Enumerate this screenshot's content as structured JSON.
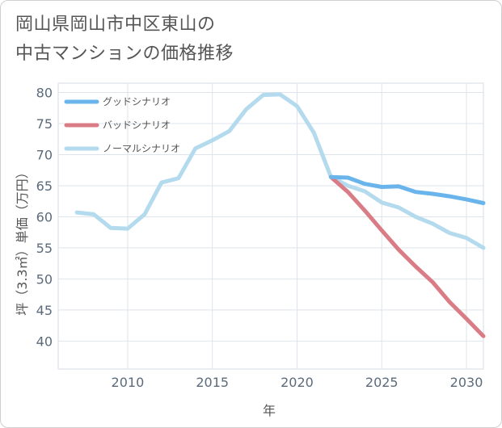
{
  "title": {
    "line1": "岡山県岡山市中区東山の",
    "line2": "中古マンションの価格推移"
  },
  "chart_data": {
    "type": "line",
    "xlabel": "年",
    "ylabel": "坪（3.3㎡）単価（万円）",
    "xlim": [
      2005.9,
      2031
    ],
    "ylim": [
      35.5,
      81.5
    ],
    "x_ticks": [
      2010,
      2015,
      2020,
      2025,
      2030
    ],
    "y_ticks": [
      40,
      45,
      50,
      55,
      60,
      65,
      70,
      75,
      80
    ],
    "grid": true,
    "legend_position": "top-left",
    "series": [
      {
        "name": "グッドシナリオ",
        "color": "#6ab4ec",
        "x": [
          2022,
          2023,
          2024,
          2025,
          2026,
          2027,
          2028,
          2029,
          2030,
          2031
        ],
        "values": [
          66.4,
          66.3,
          65.3,
          64.8,
          64.9,
          64.0,
          63.7,
          63.3,
          62.8,
          62.2
        ]
      },
      {
        "name": "バッドシナリオ",
        "color": "#da7c86",
        "x": [
          2022,
          2023,
          2024,
          2025,
          2026,
          2027,
          2028,
          2029,
          2030,
          2031
        ],
        "values": [
          66.4,
          64.0,
          61.0,
          57.8,
          54.7,
          52.0,
          49.5,
          46.3,
          43.6,
          40.8
        ]
      },
      {
        "name": "ノーマルシナリオ",
        "color": "#b4daee",
        "x": [
          2007,
          2008,
          2009,
          2010,
          2011,
          2012,
          2013,
          2014,
          2015,
          2016,
          2017,
          2018,
          2019,
          2020,
          2021,
          2022,
          2023,
          2024,
          2025,
          2026,
          2027,
          2028,
          2029,
          2030,
          2031
        ],
        "values": [
          60.7,
          60.4,
          58.2,
          58.1,
          60.4,
          65.5,
          66.2,
          71.0,
          72.3,
          73.8,
          77.3,
          79.6,
          79.7,
          77.8,
          73.5,
          66.4,
          65.0,
          64.1,
          62.3,
          61.5,
          60.0,
          58.9,
          57.4,
          56.6,
          55.0
        ]
      }
    ]
  }
}
